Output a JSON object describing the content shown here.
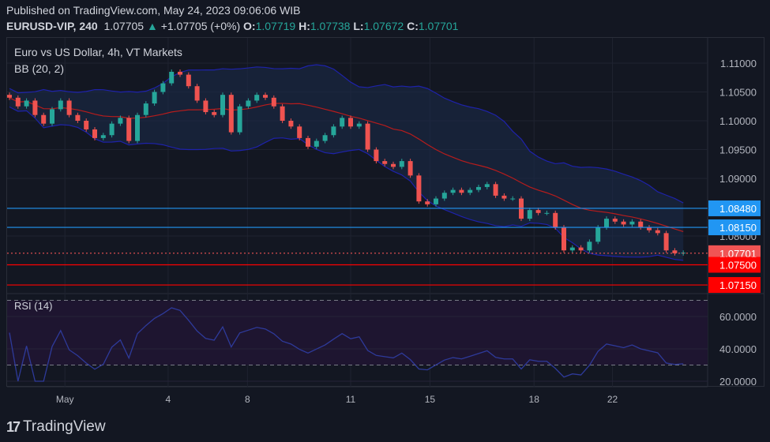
{
  "header": {
    "published": "Published on TradingView.com, May 24, 2023 09:06:06 WIB",
    "symbol": "EURUSD-VIP, 240",
    "last": "1.07705",
    "change_icon": "triangle-up-icon",
    "change": "+1.07705 (+0%)",
    "o_label": "O:",
    "o": "1.07719",
    "h_label": "H:",
    "h": "1.07738",
    "l_label": "L:",
    "l": "1.07672",
    "c_label": "C:",
    "c": "1.07701"
  },
  "legend": {
    "title": "Euro vs US Dollar, 4h, VT Markets",
    "bb": "BB (20, 2)",
    "rsi": "RSI (14)"
  },
  "colors": {
    "up": "#26a69a",
    "down": "#ef5350",
    "bb": "#1e22aa",
    "bb_mid": "#b71c1c",
    "blue_level": "#2196f3",
    "red_level": "#ff0000",
    "rsi": "#1f2a7a",
    "rsi_band": "#1e1530"
  },
  "logo": {
    "text": "TradingView"
  },
  "chart_data": [
    {
      "type": "candlestick",
      "title": "Euro vs US Dollar, 4h, VT Markets",
      "indicator": "BB (20, 2)",
      "ylim": [
        1.07,
        1.112
      ],
      "y_ticks": [
        "1.11000",
        "1.10500",
        "1.10000",
        "1.09500",
        "1.09000",
        "1.08000"
      ],
      "x_ticks": [
        {
          "label": "May",
          "bar": 6.5
        },
        {
          "label": "4",
          "bar": 18.6
        },
        {
          "label": "8",
          "bar": 27.9
        },
        {
          "label": "11",
          "bar": 40
        },
        {
          "label": "15",
          "bar": 49.3
        },
        {
          "label": "18",
          "bar": 61.5
        },
        {
          "label": "22",
          "bar": 70.7
        }
      ],
      "closes": [
        1.104,
        1.1025,
        1.1035,
        1.101,
        1.0995,
        1.102,
        1.1035,
        1.101,
        1.1,
        1.0985,
        1.097,
        1.0975,
        1.0995,
        1.1005,
        1.0965,
        1.101,
        1.103,
        1.105,
        1.1065,
        1.1085,
        1.108,
        1.106,
        1.1035,
        1.1015,
        1.101,
        1.1045,
        1.098,
        1.1025,
        1.1035,
        1.1045,
        1.104,
        1.1025,
        1.1,
        1.099,
        1.097,
        1.0955,
        1.0965,
        1.0975,
        1.099,
        1.1005,
        1.099,
        1.0995,
        1.095,
        1.093,
        1.0925,
        1.092,
        1.093,
        1.0905,
        1.086,
        1.0855,
        1.0865,
        1.0875,
        1.088,
        1.0875,
        1.088,
        1.0885,
        1.089,
        1.087,
        1.0865,
        1.0865,
        1.083,
        1.0845,
        1.084,
        1.084,
        1.0815,
        1.0775,
        1.078,
        1.0775,
        1.079,
        1.0815,
        1.083,
        1.0825,
        1.082,
        1.0825,
        1.0815,
        1.081,
        1.0805,
        1.0775,
        1.077,
        1.0771
      ],
      "levels": [
        {
          "value": 1.0848,
          "label": "1.08480",
          "color": "#2196f3",
          "style": "solid"
        },
        {
          "value": 1.0815,
          "label": "1.08150",
          "color": "#2196f3",
          "style": "solid"
        },
        {
          "value": 1.07701,
          "label": "1.07701",
          "color": "#f05454",
          "style": "dotted"
        },
        {
          "value": 1.075,
          "label": "1.07500",
          "color": "#ff0000",
          "style": "solid"
        },
        {
          "value": 1.0715,
          "label": "1.07150",
          "color": "#ff0000",
          "style": "solid"
        }
      ]
    },
    {
      "type": "line",
      "title": "RSI (14)",
      "ylim": [
        17,
        74
      ],
      "y_ticks": [
        "60.0000",
        "40.0000",
        "20.0000"
      ],
      "bands": [
        30,
        70
      ]
    }
  ]
}
